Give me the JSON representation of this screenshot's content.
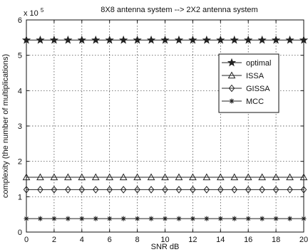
{
  "chart_data": {
    "type": "line",
    "title": "8X8 antenna system --> 2X2 antenna system",
    "xlabel": "SNR dB",
    "ylabel": "complexity (the number of multiplications)",
    "y_multiplier": "x 10",
    "y_multiplier_exp": "5",
    "xlim": [
      0,
      20
    ],
    "ylim": [
      0,
      6
    ],
    "x_ticks": [
      0,
      2,
      4,
      6,
      8,
      10,
      12,
      14,
      16,
      18,
      20
    ],
    "y_ticks": [
      0,
      1,
      2,
      3,
      4,
      5,
      6
    ],
    "grid": true,
    "legend_position": "top-right",
    "x": [
      0,
      1,
      2,
      3,
      4,
      5,
      6,
      7,
      8,
      9,
      10,
      11,
      12,
      13,
      14,
      15,
      16,
      17,
      18,
      19,
      20
    ],
    "series": [
      {
        "name": "optimal",
        "marker": "pentagram",
        "values": [
          5.43,
          5.43,
          5.43,
          5.43,
          5.43,
          5.43,
          5.43,
          5.43,
          5.43,
          5.43,
          5.43,
          5.43,
          5.43,
          5.43,
          5.43,
          5.43,
          5.43,
          5.43,
          5.43,
          5.43,
          5.43
        ]
      },
      {
        "name": "ISSA",
        "marker": "triangle",
        "values": [
          1.55,
          1.55,
          1.55,
          1.55,
          1.55,
          1.55,
          1.55,
          1.55,
          1.55,
          1.55,
          1.55,
          1.55,
          1.55,
          1.55,
          1.55,
          1.55,
          1.55,
          1.55,
          1.55,
          1.55,
          1.55
        ]
      },
      {
        "name": "GISSA",
        "marker": "diamond",
        "values": [
          1.2,
          1.2,
          1.2,
          1.2,
          1.2,
          1.2,
          1.2,
          1.2,
          1.2,
          1.2,
          1.2,
          1.2,
          1.2,
          1.2,
          1.2,
          1.2,
          1.2,
          1.2,
          1.2,
          1.2,
          1.2
        ]
      },
      {
        "name": "MCC",
        "marker": "asterisk",
        "values": [
          0.38,
          0.38,
          0.38,
          0.38,
          0.38,
          0.38,
          0.38,
          0.38,
          0.38,
          0.38,
          0.38,
          0.38,
          0.38,
          0.38,
          0.38,
          0.38,
          0.38,
          0.38,
          0.38,
          0.38,
          0.38
        ]
      }
    ]
  },
  "colors": {
    "line": "#222222",
    "grid": "#333333",
    "background": "#ffffff"
  }
}
